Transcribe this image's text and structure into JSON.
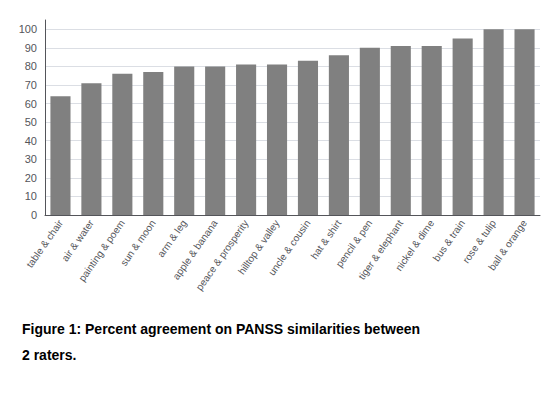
{
  "chart_data": {
    "type": "bar",
    "categories": [
      "table & chair",
      "air & water",
      "painting & poem",
      "sun & moon",
      "arm & leg",
      "apple & banana",
      "peace & prosperity",
      "hilltop & valley",
      "uncle & cousin",
      "hat & shirt",
      "pencil & pen",
      "tiger & elephant",
      "nickel & dime",
      "bus & train",
      "rose & tulip",
      "ball & orange"
    ],
    "values": [
      64,
      71,
      76,
      77,
      80,
      80,
      81,
      81,
      83,
      86,
      90,
      91,
      91,
      95,
      100,
      100
    ],
    "color": "#808080",
    "ylim": [
      0,
      105
    ],
    "yticks": [
      0,
      10,
      20,
      30,
      40,
      50,
      60,
      70,
      80,
      90,
      100
    ],
    "grid": true,
    "annotations": [
      "Figure 1: Percent agreement on PANSS similarities between",
      "2 raters."
    ]
  }
}
